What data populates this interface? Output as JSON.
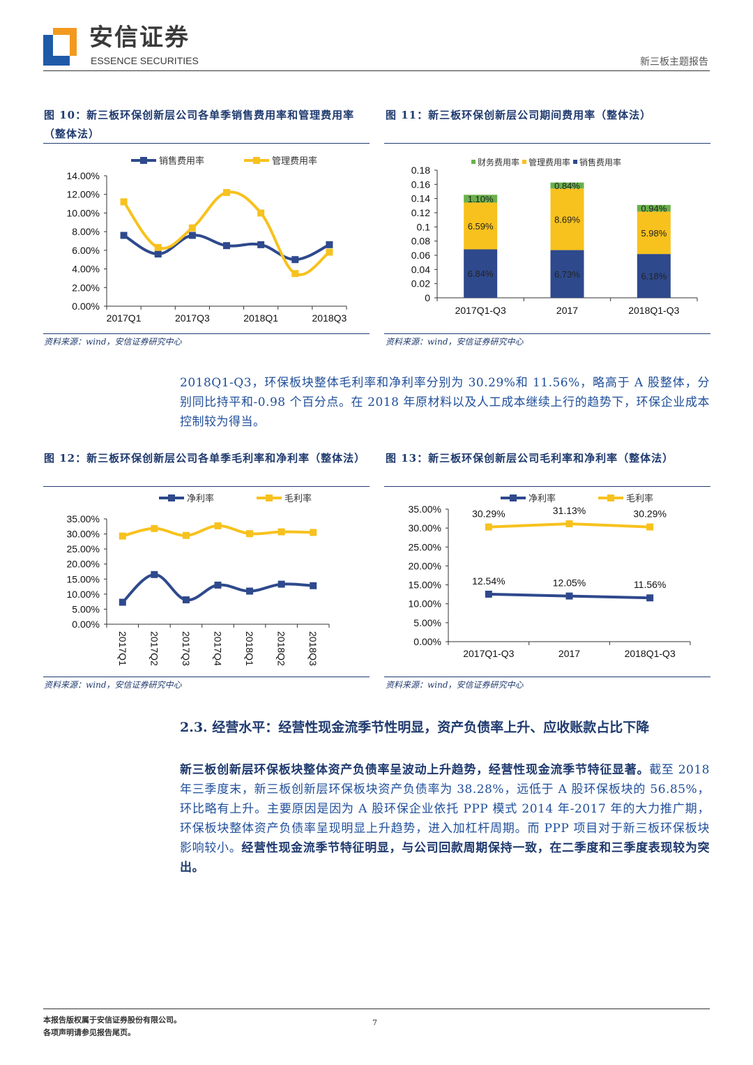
{
  "header": {
    "brand_cn": "安信证券",
    "brand_en": "ESSENCE SECURITIES",
    "report_type": "新三板主题报告",
    "colors": {
      "logo_blue": "#1f5aa8",
      "logo_orange": "#f39a1e"
    }
  },
  "fig10": {
    "caption": "图 10：新三板环保创新层公司各单季销售费用率和管理费用率（整体法）",
    "source": "资料来源：wind，安信证券研究中心"
  },
  "fig11": {
    "caption": "图 11：新三板环保创新层公司期间费用率（整体法）",
    "source": "资料来源：wind，安信证券研究中心"
  },
  "fig12": {
    "caption": "图 12：新三板环保创新层公司各单季毛利率和净利率（整体法）",
    "source": "资料来源：wind，安信证券研究中心"
  },
  "fig13": {
    "caption": "图 13：新三板环保创新层公司毛利率和净利率（整体法）",
    "source": "资料来源：wind，安信证券研究中心"
  },
  "para1": "2018Q1-Q3，环保板块整体毛利率和净利率分别为 30.29%和 11.56%，略高于 A 股整体，分别同比持平和-0.98 个百分点。在 2018 年原材料以及人工成本继续上行的趋势下，环保企业成本控制较为得当。",
  "section": {
    "title": "2.3. 经营水平：经营性现金流季节性明显，资产负债率上升、应收账款占比下降",
    "para_bold1": "新三板创新层环保板块整体资产负债率呈波动上升趋势，经营性现金流季节特征显著。",
    "para_mid": "截至 2018 年三季度末，新三板创新层环保板块资产负债率为 38.28%，远低于 A 股环保板块的 56.85%，环比略有上升。主要原因是因为 A 股环保企业依托 PPP 模式 2014 年-2017 年的大力推广期，环保板块整体资产负债率呈现明显上升趋势，进入加杠杆周期。而 PPP 项目对于新三板环保板块影响较小。",
    "para_bold2": "经营性现金流季节特征明显，与公司回款周期保持一致，在二季度和三季度表现较为突出。"
  },
  "footer": {
    "line1": "本报告版权属于安信证券股份有限公司。",
    "line2": "各项声明请参见报告尾页。",
    "page": "7"
  },
  "chart_data": [
    {
      "type": "line",
      "id": "fig10",
      "categories": [
        "2017Q1",
        "2017Q2",
        "2017Q3",
        "2017Q4",
        "2018Q1",
        "2018Q2",
        "2018Q3"
      ],
      "tick_labels": [
        "2017Q1",
        "",
        "2017Q3",
        "",
        "2018Q1",
        "",
        "2018Q3"
      ],
      "yticks": [
        "0.00%",
        "2.00%",
        "4.00%",
        "6.00%",
        "8.00%",
        "10.00%",
        "12.00%",
        "14.00%"
      ],
      "ylim": [
        0,
        14
      ],
      "legend": "top",
      "series": [
        {
          "name": "销售费用率",
          "color": "#2e4a8c",
          "values": [
            7.6,
            5.6,
            7.6,
            6.5,
            6.6,
            5.0,
            6.6
          ]
        },
        {
          "name": "管理费用率",
          "color": "#f7c11e",
          "values": [
            11.2,
            6.3,
            8.4,
            12.2,
            10.0,
            3.5,
            5.8
          ]
        }
      ]
    },
    {
      "type": "bar",
      "stacked": true,
      "id": "fig11",
      "categories": [
        "2017Q1-Q3",
        "2017",
        "2018Q1-Q3"
      ],
      "yticks": [
        "0",
        "0.02",
        "0.04",
        "0.06",
        "0.08",
        "0.1",
        "0.12",
        "0.14",
        "0.16",
        "0.18"
      ],
      "ylim": [
        0,
        0.18
      ],
      "legend": "top",
      "series": [
        {
          "name": "财务费用率",
          "color": "#6ab04c",
          "values": [
            0.011,
            0.0084,
            0.0094
          ],
          "labels": [
            "1.10%",
            "0.84%",
            "0.94%"
          ]
        },
        {
          "name": "管理费用率",
          "color": "#f7c11e",
          "values": [
            0.0659,
            0.0869,
            0.0598
          ],
          "labels": [
            "6.59%",
            "8.69%",
            "5.98%"
          ]
        },
        {
          "name": "销售费用率",
          "color": "#2e4a8c",
          "values": [
            0.0684,
            0.0673,
            0.0618
          ],
          "labels": [
            "6.84%",
            "6.73%",
            "6.18%"
          ]
        }
      ]
    },
    {
      "type": "line",
      "id": "fig12",
      "categories": [
        "2017Q1",
        "2017Q2",
        "2017Q3",
        "2017Q4",
        "2018Q1",
        "2018Q2",
        "2018Q3"
      ],
      "tick_labels": [
        "2017Q1",
        "2017Q2",
        "2017Q3",
        "2017Q4",
        "2018Q1",
        "2018Q2",
        "2018Q3"
      ],
      "rotated_ticks": true,
      "yticks": [
        "0.00%",
        "5.00%",
        "10.00%",
        "15.00%",
        "20.00%",
        "25.00%",
        "30.00%",
        "35.00%"
      ],
      "ylim": [
        0,
        35
      ],
      "legend": "top",
      "series": [
        {
          "name": "净利率",
          "color": "#2e4a8c",
          "values": [
            7.3,
            16.5,
            8.1,
            13.0,
            11.0,
            13.3,
            12.8
          ]
        },
        {
          "name": "毛利率",
          "color": "#f7c11e",
          "values": [
            29.3,
            31.8,
            29.5,
            32.7,
            30.1,
            30.7,
            30.5
          ]
        }
      ]
    },
    {
      "type": "line",
      "id": "fig13",
      "categories": [
        "2017Q1-Q3",
        "2017",
        "2018Q1-Q3"
      ],
      "tick_labels": [
        "2017Q1-Q3",
        "2017",
        "2018Q1-Q3"
      ],
      "yticks": [
        "0.00%",
        "5.00%",
        "10.00%",
        "15.00%",
        "20.00%",
        "25.00%",
        "30.00%",
        "35.00%"
      ],
      "ylim": [
        0,
        35
      ],
      "legend": "top",
      "series": [
        {
          "name": "净利率",
          "color": "#2e4a8c",
          "values": [
            12.54,
            12.05,
            11.56
          ],
          "labels": [
            "12.54%",
            "12.05%",
            "11.56%"
          ]
        },
        {
          "name": "毛利率",
          "color": "#f7c11e",
          "values": [
            30.29,
            31.13,
            30.29
          ],
          "labels": [
            "30.29%",
            "31.13%",
            "30.29%"
          ]
        }
      ]
    }
  ]
}
